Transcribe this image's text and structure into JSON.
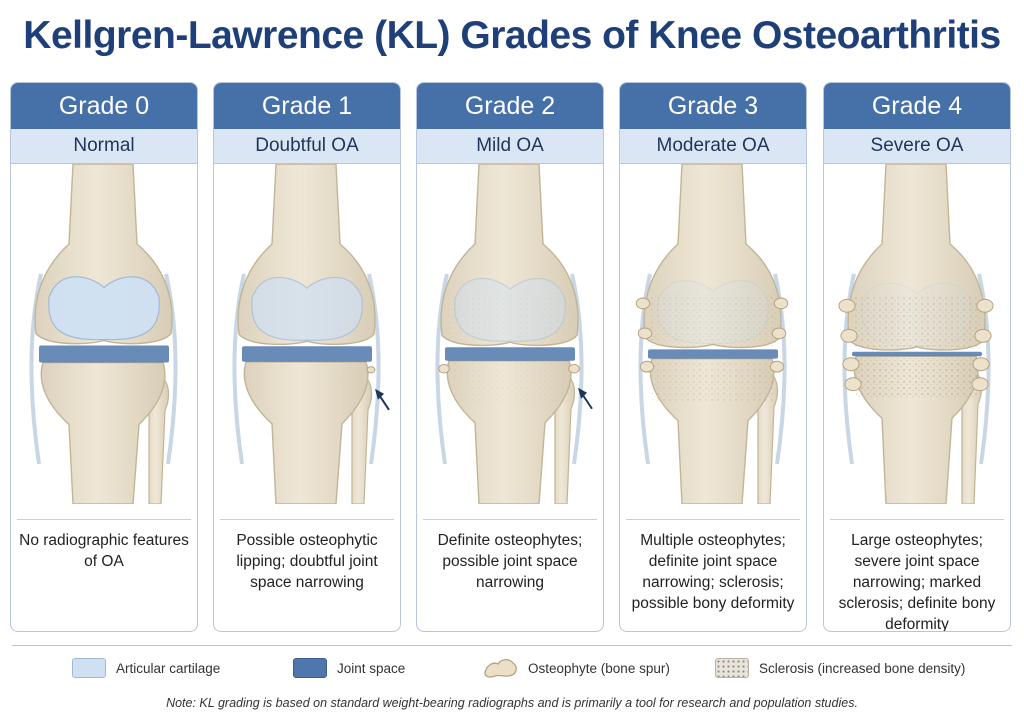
{
  "title": "Kellgren-Lawrence (KL) Grades of Knee Osteoarthritis",
  "grades": [
    {
      "grade": "Grade 0",
      "label": "Normal",
      "description": "No radiographic features of OA",
      "osteophytes": 0,
      "joint_space": 1.0,
      "sclerosis": 0,
      "arrow": false
    },
    {
      "grade": "Grade 1",
      "label": "Doubtful OA",
      "description": "Possible osteophytic lipping; doubtful joint space narrowing",
      "osteophytes": 1,
      "joint_space": 0.9,
      "sclerosis": 0,
      "arrow": true
    },
    {
      "grade": "Grade 2",
      "label": "Mild OA",
      "description": "Definite osteophytes; possible joint space narrowing",
      "osteophytes": 2,
      "joint_space": 0.75,
      "sclerosis": 0.2,
      "arrow": true
    },
    {
      "grade": "Grade 3",
      "label": "Moderate OA",
      "description": "Multiple osteophytes; definite joint space narrowing; sclerosis; possible bony deformity",
      "osteophytes": 3,
      "joint_space": 0.45,
      "sclerosis": 0.6,
      "arrow": false
    },
    {
      "grade": "Grade 4",
      "label": "Severe OA",
      "description": "Large osteophytes; severe joint space narrowing; marked sclerosis; definite bony deformity",
      "osteophytes": 4,
      "joint_space": 0.1,
      "sclerosis": 1.0,
      "arrow": false
    }
  ],
  "legend": [
    {
      "label": "Articular cartilage",
      "icon": "cartilage-swatch"
    },
    {
      "label": "Joint space",
      "icon": "joint-space-swatch"
    },
    {
      "label": "Osteophyte (bone spur)",
      "icon": "osteophyte-icon"
    },
    {
      "label": "Sclerosis (increased bone density)",
      "icon": "sclerosis-swatch"
    }
  ],
  "note": "Note: KL grading is based on standard weight-bearing radiographs and is primarily a tool for research and population studies.",
  "colors": {
    "title": "#1f3f78",
    "header": "#4670a8",
    "subheader": "#dbe6f4",
    "bone": "#efe7d6",
    "cartilage": "#cfe0f3",
    "joint_space": "#4f77ab",
    "arrow": "#1f3559"
  }
}
